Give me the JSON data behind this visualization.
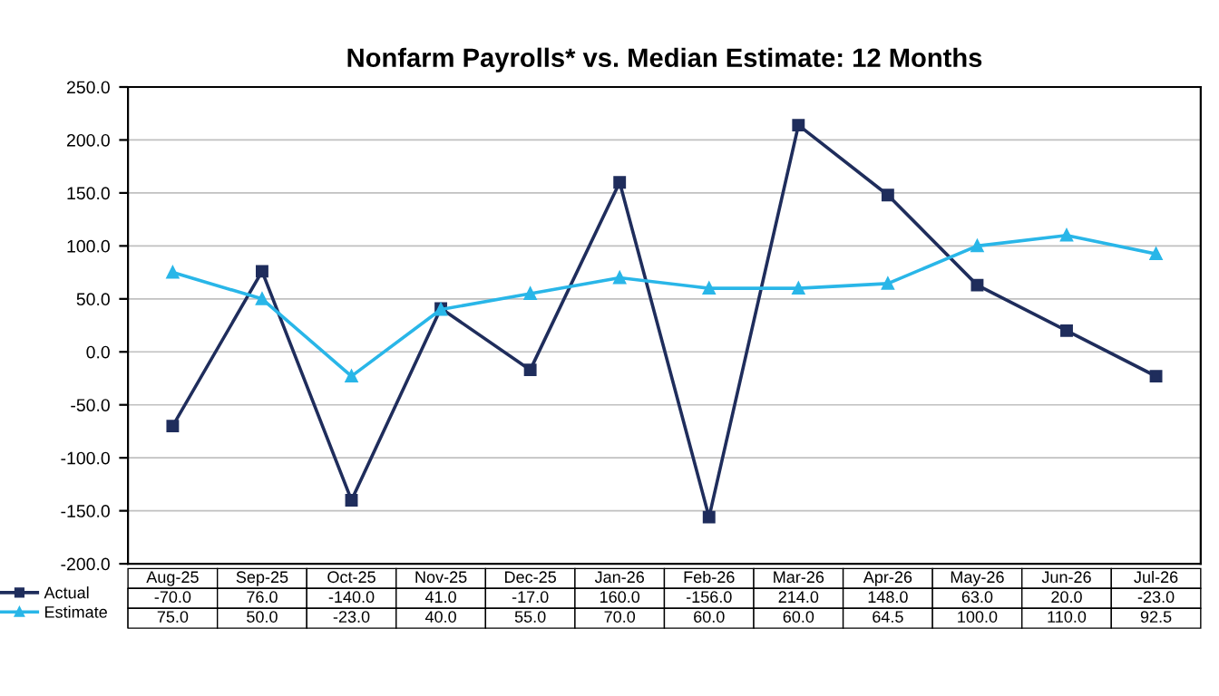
{
  "chart_data": {
    "type": "line",
    "title": "Nonfarm Payrolls* vs. Median Estimate: 12 Months",
    "categories": [
      "Aug-25",
      "Sep-25",
      "Oct-25",
      "Nov-25",
      "Dec-25",
      "Jan-26",
      "Feb-26",
      "Mar-26",
      "Apr-26",
      "May-26",
      "Jun-26",
      "Jul-26"
    ],
    "series": [
      {
        "name": "Actual",
        "color": "#1f2d5c",
        "marker": "square",
        "values": [
          -70.0,
          76.0,
          -140.0,
          41.0,
          -17.0,
          160.0,
          -156.0,
          214.0,
          148.0,
          63.0,
          20.0,
          -23.0
        ],
        "value_labels": [
          "-70.0",
          "76.0",
          "-140.0",
          "41.0",
          "-17.0",
          "160.0",
          "-156.0",
          "214.0",
          "148.0",
          "63.0",
          "20.0",
          "-23.0"
        ]
      },
      {
        "name": "Estimate",
        "color": "#29b6e8",
        "marker": "triangle",
        "values": [
          75.0,
          50.0,
          -23.0,
          40.0,
          55.0,
          70.0,
          60.0,
          60.0,
          64.5,
          100.0,
          110.0,
          92.5
        ],
        "value_labels": [
          "75.0",
          "50.0",
          "-23.0",
          "40.0",
          "55.0",
          "70.0",
          "60.0",
          "60.0",
          "64.5",
          "100.0",
          "110.0",
          "92.5"
        ]
      }
    ],
    "ylim": [
      -200,
      250
    ],
    "yticks": [
      {
        "value": -200,
        "label": "-200.0"
      },
      {
        "value": -150,
        "label": "-150.0"
      },
      {
        "value": -100,
        "label": "-100.0"
      },
      {
        "value": -50,
        "label": "-50.0"
      },
      {
        "value": 0,
        "label": "0.0"
      },
      {
        "value": 50,
        "label": "50.0"
      },
      {
        "value": 100,
        "label": "100.0"
      },
      {
        "value": 150,
        "label": "150.0"
      },
      {
        "value": 200,
        "label": "200.0"
      },
      {
        "value": 250,
        "label": "250.0"
      }
    ],
    "grid": "y",
    "legend": "bottom",
    "line_style": "solid"
  }
}
